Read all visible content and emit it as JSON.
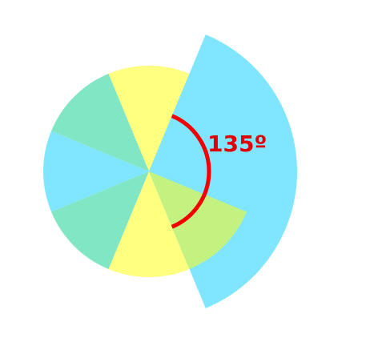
{
  "diagram": {
    "angle_label": "135º",
    "angle_degrees": 135,
    "segment_count": 8,
    "sector_order": [
      "yellow",
      "green",
      "blue",
      "green",
      "yellow",
      "green",
      "blue",
      "green"
    ],
    "colors": {
      "yellow": "#ffff80",
      "green": "#80e6c4",
      "blue": "#80e6ff",
      "overlap": "#c4f280",
      "wedge": "#80e6ff",
      "arc": "#f20000",
      "label": "#e00000"
    }
  }
}
